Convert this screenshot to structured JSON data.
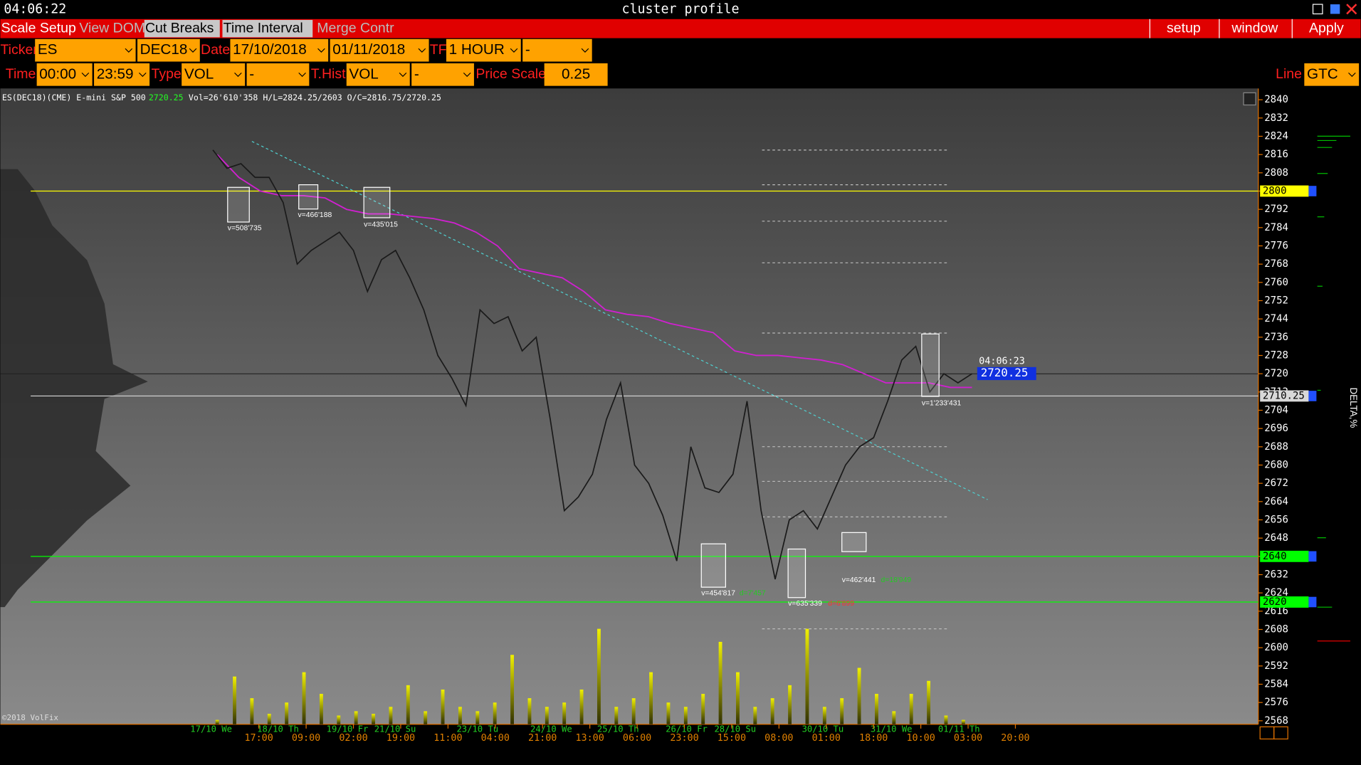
{
  "title_bar": {
    "clock": "04:06:22",
    "title": "cluster profile"
  },
  "menu": {
    "items": [
      "Scale Setup",
      "View DOM",
      "Cut Breaks",
      "Time Interval",
      "Merge Contr"
    ],
    "right": [
      "setup",
      "window",
      "Apply"
    ]
  },
  "toolbar": {
    "ticker_label": "Ticker",
    "ticker": "ES",
    "contract": "DEC18",
    "date_label": "Date",
    "date_from": "17/10/2018",
    "date_to": "01/11/2018",
    "tf_label": "TF",
    "timeframe": "1 HOUR",
    "tf_extra": "-",
    "time_label": "Time",
    "time_from": "00:00",
    "time_to": "23:59",
    "type_label": "Type",
    "type": "VOL",
    "type_extra": "-",
    "thist_label": "T.Hist",
    "thist": "VOL",
    "thist_extra": "-",
    "price_scale_label": "Price Scale",
    "price_scale": "0.25",
    "line_label": "Line",
    "line": "GTC"
  },
  "chart": {
    "info_symbol": "ES(DEC18)(CME) E-mini S&P 500",
    "info_last": "2720.25",
    "info_stats": "Vol=26'610'358 H/L=2824.25/2603 O/C=2816.75/2720.25",
    "ylim": [
      2568,
      2840
    ],
    "yticks": [
      2840,
      2832,
      2824,
      2816,
      2808,
      2800,
      2792,
      2784,
      2776,
      2768,
      2760,
      2752,
      2744,
      2736,
      2728,
      2720,
      2712,
      2704,
      2696,
      2688,
      2680,
      2672,
      2664,
      2656,
      2648,
      2640,
      2632,
      2624,
      2616,
      2608,
      2600,
      2592,
      2584,
      2576,
      2568
    ],
    "dates": [
      "17/10 We",
      "18/10 Th",
      "19/10 Fr",
      "21/10 Su",
      "23/10 Tu",
      "24/10 We",
      "25/10 Th",
      "26/10 Fr",
      "28/10 Su",
      "30/10 Tu",
      "31/10 We",
      "01/11 Th"
    ],
    "times": [
      "17:00",
      "09:00",
      "02:00",
      "19:00",
      "11:00",
      "04:00",
      "21:00",
      "13:00",
      "06:00",
      "23:00",
      "15:00",
      "08:00",
      "01:00",
      "18:00",
      "10:00",
      "03:00",
      "20:00"
    ],
    "levels": [
      {
        "value": 2800,
        "color": "#ffff00"
      },
      {
        "value": 2640,
        "color": "#00ff00"
      },
      {
        "value": 2620,
        "color": "#00ff00"
      },
      {
        "value": 2710.25,
        "color": "#d8d8d8"
      }
    ],
    "last_price": 2720.25,
    "last_time": "04:06:23",
    "annotations": [
      {
        "text": "v=508'735",
        "color": "#ffffff"
      },
      {
        "text": "v=466'188",
        "color": "#ffffff"
      },
      {
        "text": "v=435'015",
        "color": "#ffffff"
      },
      {
        "text": "v=454'817",
        "color": "#ffffff"
      },
      {
        "text": "d=7'457",
        "color": "#22cc22"
      },
      {
        "text": "v=635'339",
        "color": "#ffffff"
      },
      {
        "text": "d=6'899",
        "color": "#ff3030"
      },
      {
        "text": "v=462'441",
        "color": "#ffffff"
      },
      {
        "text": "d=18'949",
        "color": "#22cc22"
      },
      {
        "text": "v=1'233'431",
        "color": "#ffffff"
      }
    ],
    "price": [
      2818,
      2810,
      2812,
      2806,
      2806,
      2795,
      2768,
      2774,
      2778,
      2782,
      2774,
      2756,
      2770,
      2774,
      2762,
      2748,
      2728,
      2718,
      2706,
      2748,
      2742,
      2745,
      2730,
      2736,
      2700,
      2660,
      2666,
      2676,
      2700,
      2716,
      2680,
      2672,
      2658,
      2638,
      2688,
      2670,
      2668,
      2676,
      2708,
      2660,
      2630,
      2656,
      2660,
      2652,
      2666,
      2680,
      2688,
      2692,
      2708,
      2726,
      2732,
      2712,
      2720,
      2716,
      2720
    ],
    "vwap": [
      2816,
      2806,
      2800,
      2798,
      2798,
      2797,
      2792,
      2790,
      2790,
      2789,
      2788,
      2786,
      2782,
      2776,
      2766,
      2764,
      2762,
      2756,
      2748,
      2746,
      2745,
      2742,
      2740,
      2738,
      2730,
      2728,
      2728,
      2727,
      2726,
      2724,
      2720,
      2716,
      2716,
      2716,
      2714,
      2714
    ],
    "volume": [
      5,
      55,
      30,
      12,
      25,
      60,
      35,
      10,
      15,
      12,
      20,
      45,
      15,
      40,
      20,
      15,
      25,
      80,
      30,
      20,
      25,
      40,
      110,
      20,
      30,
      60,
      25,
      20,
      35,
      95,
      60,
      20,
      30,
      45,
      110,
      20,
      30,
      65,
      35,
      15,
      35,
      50,
      10,
      5
    ],
    "copyright": "©2018 VolFix",
    "delta_label": "DELTA,%"
  }
}
